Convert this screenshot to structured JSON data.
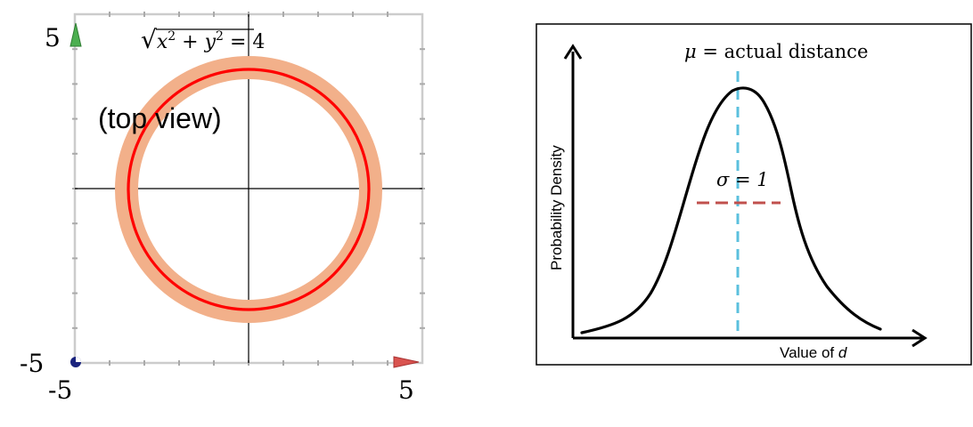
{
  "left_panel": {
    "equation": {
      "radical": "√",
      "x": "x",
      "x_exp": "2",
      "plus": " + ",
      "y": "y",
      "y_exp": "2",
      "rhs": " = 4"
    },
    "top_view_label": "(top view)",
    "y_top_tick": "5",
    "y_bottom_tick": "-5",
    "x_left_tick": "-5",
    "x_right_tick": "5",
    "colors": {
      "band": "#f2b08a",
      "circle": "#ff0000",
      "grid": "#cccccc",
      "axis": "#000000",
      "y_arrow": "#4caf50",
      "x_arrow": "#d9534f",
      "origin_dot": "#1a237e"
    }
  },
  "right_panel": {
    "mu_symbol": "μ",
    "mu_text": " = actual distance",
    "sigma_label": "σ = 1",
    "y_axis_label": "Probability Density",
    "x_axis_label_prefix": "Value of ",
    "x_axis_label_var": "d",
    "colors": {
      "mean_line": "#5bc0de",
      "sigma_line": "#c0504d",
      "curve": "#000000",
      "frame": "#000000"
    }
  }
}
